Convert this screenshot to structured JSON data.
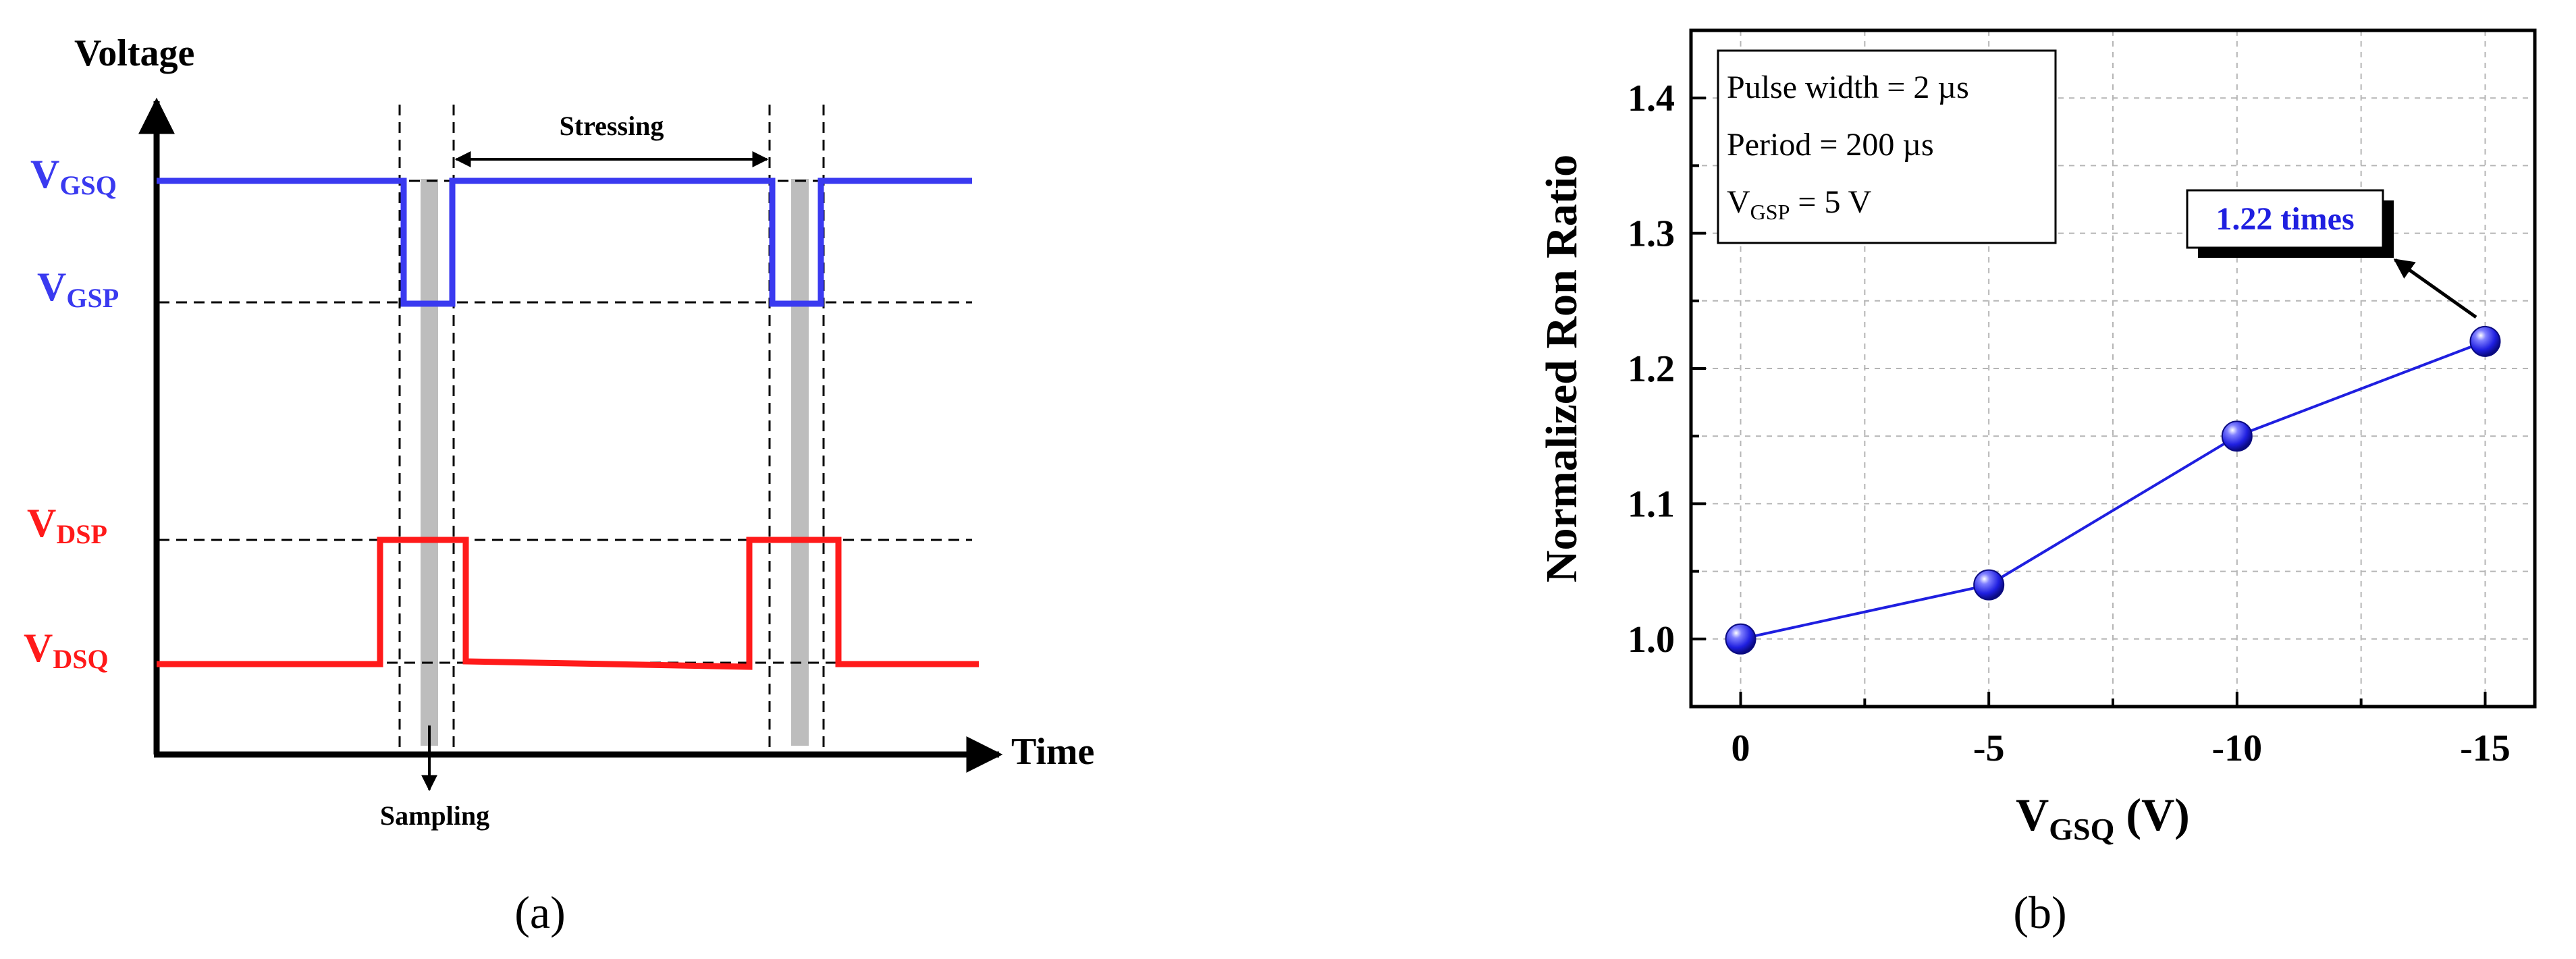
{
  "colors": {
    "vgs": "#3a3af0",
    "vds": "#ff1a1a",
    "marker": "#1f1fe0",
    "grey_band": "#bdbdbd",
    "axis": "#000000",
    "grid": "#b5b5b5"
  },
  "panel_a": {
    "caption": "(a)",
    "y_axis_label": "Voltage",
    "x_axis_label": "Time",
    "stressing_label": "Stressing",
    "sampling_label": "Sampling",
    "levels": [
      {
        "main": "V",
        "sub": "GSQ",
        "color": "vgs"
      },
      {
        "main": "V",
        "sub": "GSP",
        "color": "vgs"
      },
      {
        "main": "V",
        "sub": "DSP",
        "color": "vds"
      },
      {
        "main": "V",
        "sub": "DSQ",
        "color": "vds"
      }
    ]
  },
  "panel_b": {
    "caption": "(b)",
    "info_lines": [
      {
        "text": "Pulse width = 2 µs"
      },
      {
        "text": "Period = 200 µs"
      },
      {
        "main": "V",
        "sub": "GSP",
        "tail": " = 5 V"
      }
    ],
    "annotation": "1.22 times"
  },
  "chart_data": {
    "type": "line",
    "title": "",
    "xlabel_main": "V",
    "xlabel_sub": "GSQ",
    "xlabel_tail": " (V)",
    "ylabel": "Normalized Ron Ratio",
    "x": [
      0,
      -5,
      -10,
      -15
    ],
    "x_tick_labels": [
      "0",
      "-5",
      "-10",
      "-15"
    ],
    "y": [
      1.0,
      1.04,
      1.15,
      1.22
    ],
    "y_ticks": [
      1.0,
      1.1,
      1.2,
      1.3,
      1.4
    ],
    "y_tick_labels": [
      "1.0",
      "1.1",
      "1.2",
      "1.3",
      "1.4"
    ],
    "xlim": [
      1,
      -16
    ],
    "ylim": [
      0.95,
      1.45
    ],
    "grid": true,
    "legend": "none"
  }
}
